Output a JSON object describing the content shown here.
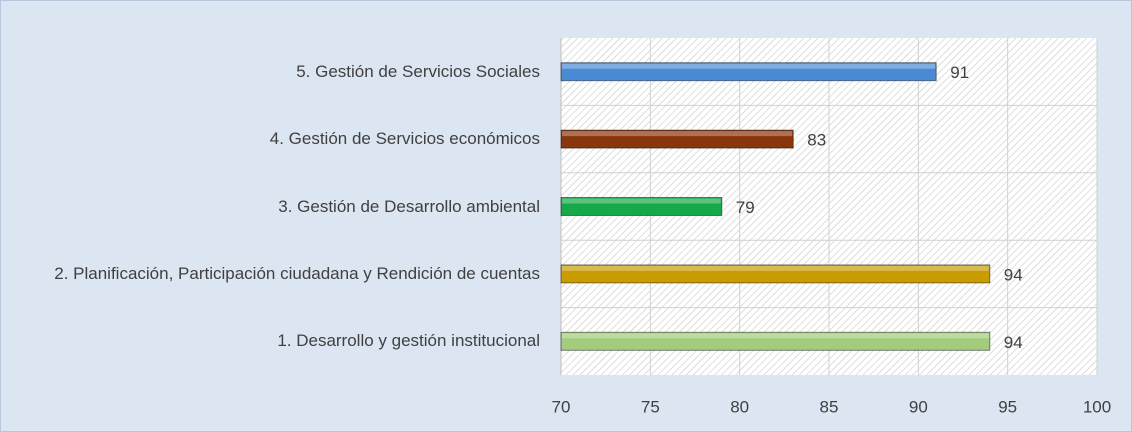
{
  "chart_data": {
    "type": "bar",
    "orientation": "horizontal",
    "categories": [
      "5. Gestión de Servicios Sociales",
      "4. Gestión de Servicios económicos",
      "3. Gestión de Desarrollo ambiental",
      "2. Planificación, Participación ciudadana y Rendición de cuentas",
      "1. Desarrollo y gestión institucional"
    ],
    "values": [
      91,
      83,
      79,
      94,
      94
    ],
    "colors": [
      "#4a8ad4",
      "#8a360c",
      "#16a84a",
      "#c99c00",
      "#a3cc7c"
    ],
    "xlim": [
      70,
      100
    ],
    "xticks": [
      70,
      75,
      80,
      85,
      90,
      95,
      100
    ],
    "grid": true
  }
}
